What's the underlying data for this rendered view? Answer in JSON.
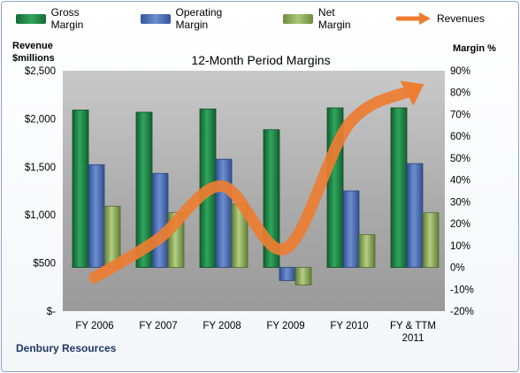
{
  "chart_data": {
    "type": "bar",
    "title": "12-Month Period Margins",
    "company": "Denbury Resources",
    "ylabel_left": [
      "Revenue",
      "$millions"
    ],
    "ylabel_right": "Margin %",
    "categories": [
      [
        "FY 2006"
      ],
      [
        "FY 2007"
      ],
      [
        "FY 2008"
      ],
      [
        "FY 2009"
      ],
      [
        "FY 2010"
      ],
      [
        "FY & TTM",
        "2011"
      ]
    ],
    "left_axis": {
      "min": 0,
      "max": 2500,
      "step": 500,
      "ticks": [
        "$-",
        "$500",
        "$1,000",
        "$1,500",
        "$2,000",
        "$2,500"
      ]
    },
    "right_axis": {
      "min": -20,
      "max": 90,
      "step": 10,
      "ticks": [
        "-20%",
        "-10%",
        "0%",
        "10%",
        "20%",
        "30%",
        "40%",
        "50%",
        "60%",
        "70%",
        "80%",
        "90%"
      ]
    },
    "series": [
      {
        "name": "Gross Margin",
        "type": "bar",
        "axis": "right",
        "color": "#1e8a4a",
        "values": [
          72,
          71,
          72.5,
          63,
          73,
          73
        ]
      },
      {
        "name": "Operating Margin",
        "type": "bar",
        "axis": "right",
        "color": "#4a6fb5",
        "values": [
          47,
          43,
          49.5,
          -6,
          35,
          47.5
        ]
      },
      {
        "name": "Net Margin",
        "type": "bar",
        "axis": "right",
        "color": "#8fad58",
        "values": [
          28,
          25,
          29,
          -8,
          15,
          25
        ]
      },
      {
        "name": "Revenues",
        "type": "line",
        "axis": "left",
        "color": "#ed7d31",
        "values": [
          350,
          750,
          1300,
          650,
          1950,
          2300
        ]
      }
    ],
    "legend_position": "top",
    "grid": false
  }
}
